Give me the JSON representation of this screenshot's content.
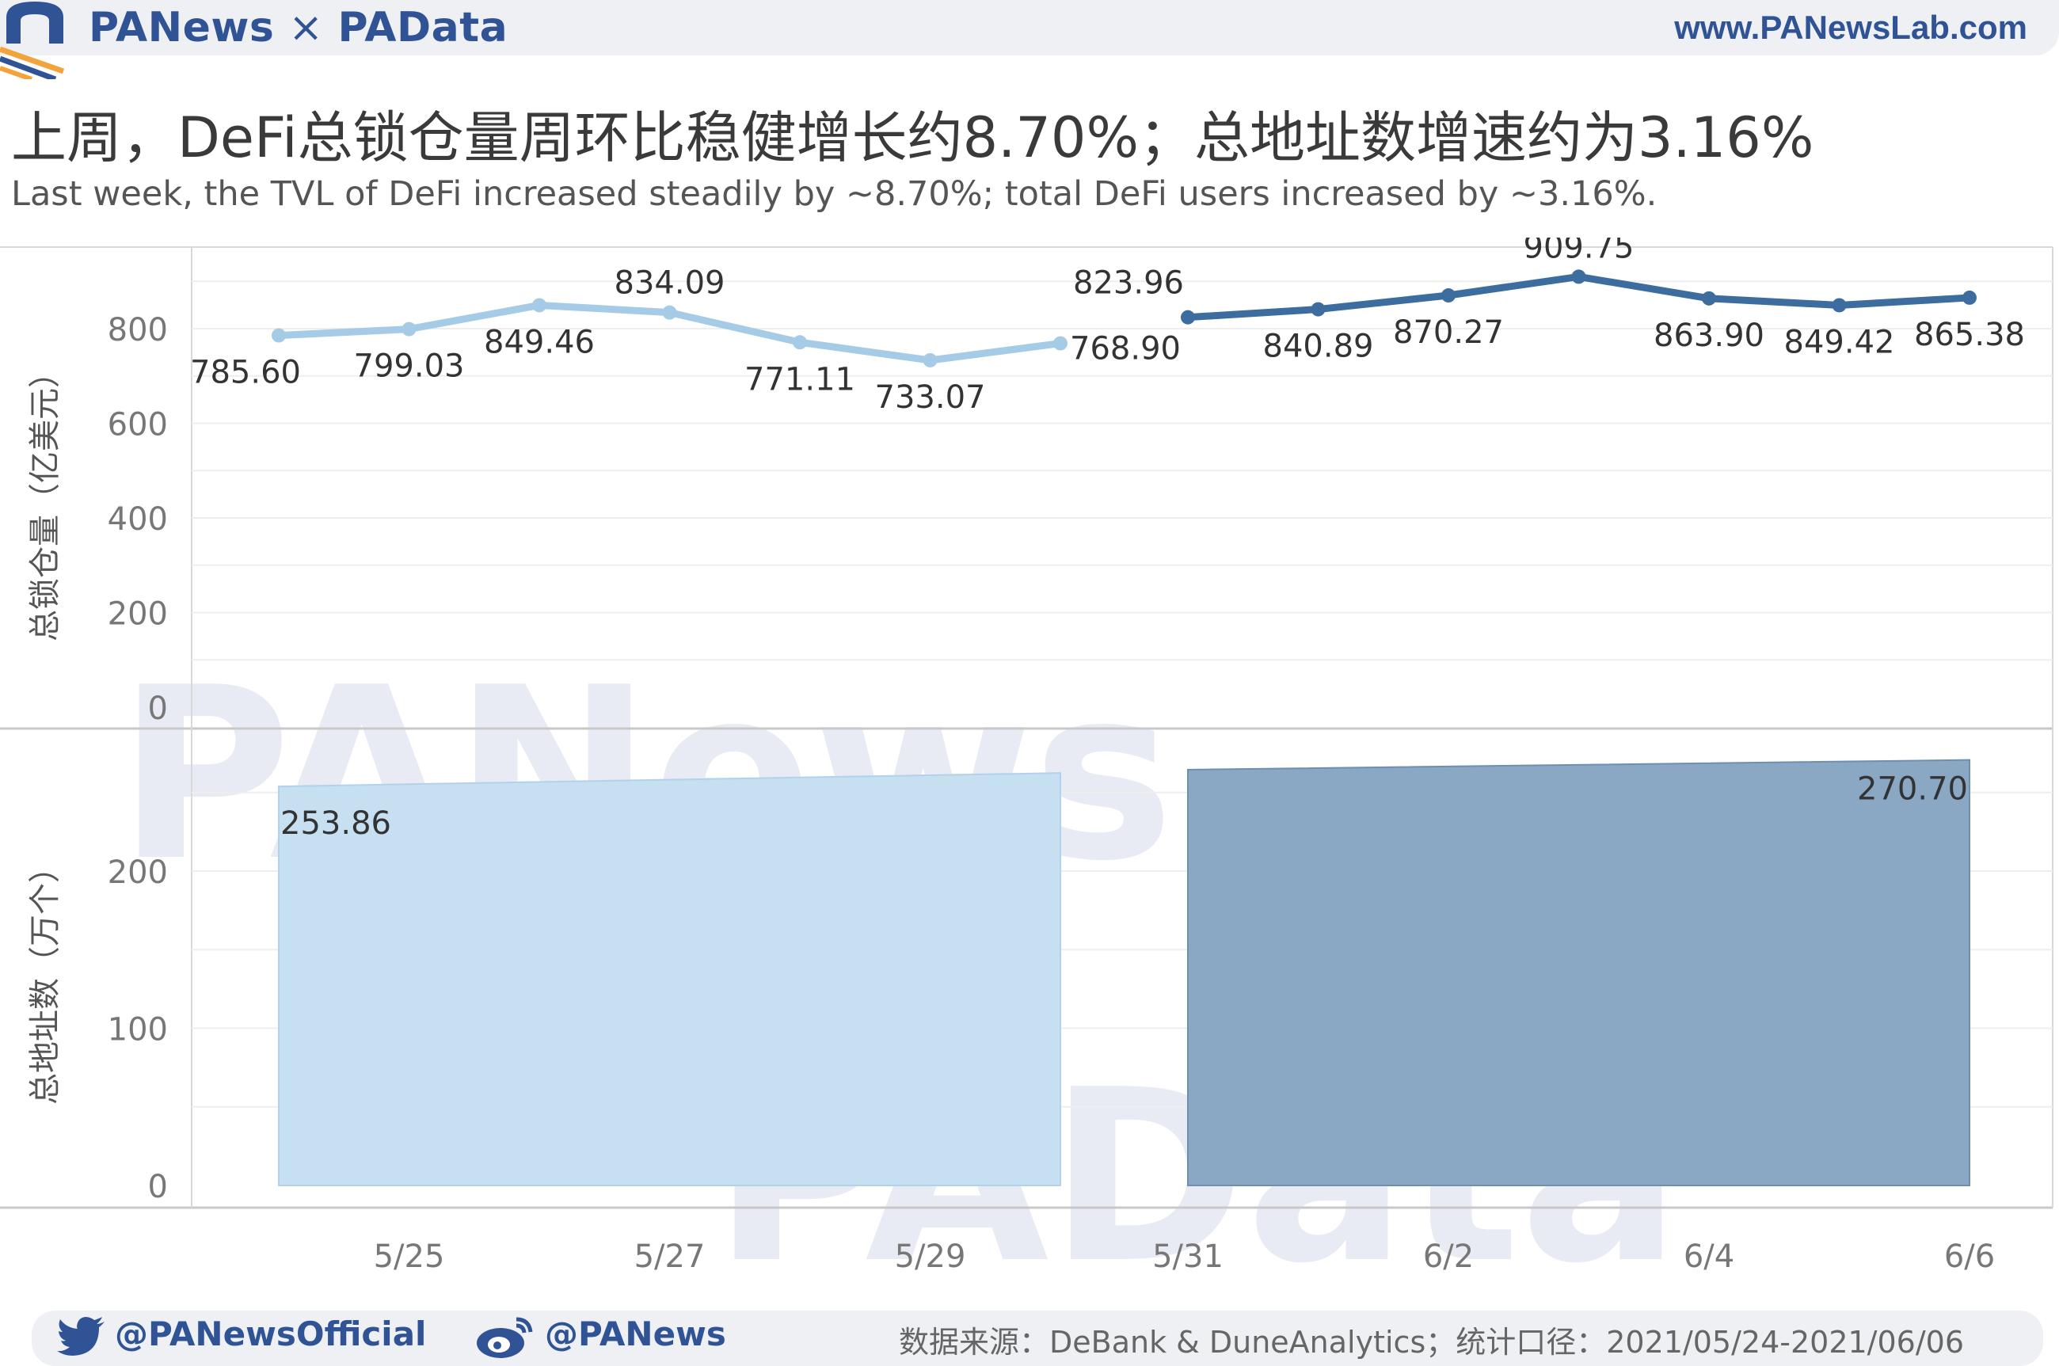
{
  "header": {
    "brand_left": "PANews",
    "brand_separator": "×",
    "brand_right": "PAData",
    "website": "www.PANewsLab.com"
  },
  "title": "上周，DeFi总锁仓量周环比稳健增长约8.70%；总地址数增速约为3.16%",
  "subtitle": "Last week, the TVL of DeFi increased steadily by ~8.70%; total DeFi users increased by ~3.16%.",
  "watermarks": {
    "top": "PANews",
    "bottom": "PAData"
  },
  "colors": {
    "week1": "#a6cbe6",
    "week2": "#3d6d9e",
    "bar_week1": "#c6dff1",
    "bar_week2": "#8aa7c4",
    "brand": "#2f5395",
    "accent_orange": "#f4a23a"
  },
  "chart_data": [
    {
      "type": "line",
      "ylabel": "总锁仓量（亿美元）",
      "ylim": [
        0,
        900
      ],
      "yticks": [
        0,
        200,
        400,
        600,
        800
      ],
      "x": [
        "5/24",
        "5/25",
        "5/26",
        "5/27",
        "5/28",
        "5/29",
        "5/30",
        "5/31",
        "6/1",
        "6/2",
        "6/3",
        "6/4",
        "6/5",
        "6/6"
      ],
      "series": [
        {
          "week": 1,
          "x": [
            "5/24",
            "5/25",
            "5/26",
            "5/27",
            "5/28",
            "5/29",
            "5/30"
          ],
          "values": [
            785.6,
            799.03,
            849.46,
            834.09,
            771.11,
            733.07,
            768.9
          ]
        },
        {
          "week": 2,
          "x": [
            "5/31",
            "6/1",
            "6/2",
            "6/3",
            "6/4",
            "6/5",
            "6/6"
          ],
          "values": [
            823.96,
            840.89,
            870.27,
            909.75,
            863.9,
            849.42,
            865.38
          ]
        }
      ],
      "data_labels": [
        {
          "x": "5/24",
          "text": "785.60",
          "pos": "below"
        },
        {
          "x": "5/25",
          "text": "799.03",
          "pos": "below"
        },
        {
          "x": "5/26",
          "text": "849.46",
          "pos": "below"
        },
        {
          "x": "5/27",
          "text": "834.09",
          "pos": "above"
        },
        {
          "x": "5/28",
          "text": "771.11",
          "pos": "below"
        },
        {
          "x": "5/29",
          "text": "733.07",
          "pos": "below"
        },
        {
          "x": "5/30",
          "text": "768.90",
          "pos": "right"
        },
        {
          "x": "5/31",
          "text": "823.96",
          "pos": "above-left"
        },
        {
          "x": "6/1",
          "text": "840.89",
          "pos": "below"
        },
        {
          "x": "6/2",
          "text": "870.27",
          "pos": "below"
        },
        {
          "x": "6/3",
          "text": "909.75",
          "pos": "above"
        },
        {
          "x": "6/4",
          "text": "863.90",
          "pos": "below"
        },
        {
          "x": "6/5",
          "text": "849.42",
          "pos": "below"
        },
        {
          "x": "6/6",
          "text": "865.38",
          "pos": "below"
        }
      ]
    },
    {
      "type": "area",
      "ylabel": "总地址数（万个）",
      "ylim": [
        0,
        290
      ],
      "yticks": [
        0,
        100,
        200
      ],
      "xticks": [
        "5/25",
        "5/27",
        "5/29",
        "5/31",
        "6/2",
        "6/4",
        "6/6"
      ],
      "series": [
        {
          "week": 1,
          "x": [
            "5/24",
            "5/30"
          ],
          "values": [
            253.86,
            262.4
          ]
        },
        {
          "week": 2,
          "x": [
            "5/31",
            "6/6"
          ],
          "values": [
            264.5,
            270.7
          ]
        }
      ],
      "data_labels": [
        {
          "x": "5/24",
          "text": "253.86"
        },
        {
          "x": "6/6",
          "text": "270.70"
        }
      ]
    }
  ],
  "footer": {
    "twitter": "@PANewsOfficial",
    "weibo": "@PANews",
    "source": "数据来源：DeBank & DuneAnalytics；统计口径：2021/05/24-2021/06/06"
  }
}
